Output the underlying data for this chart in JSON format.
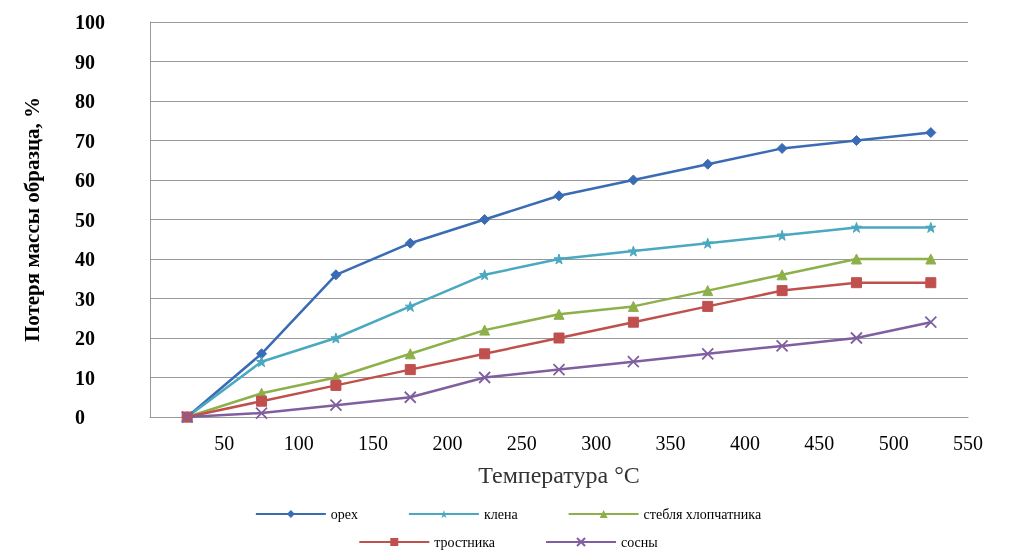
{
  "chart_data": {
    "type": "line",
    "xlabel": "Температура °C",
    "ylabel": "Потеря массы образца, %",
    "x": [
      25,
      75,
      125,
      175,
      225,
      275,
      325,
      375,
      425,
      475,
      525
    ],
    "xlim": [
      0,
      550
    ],
    "xticks": [
      50,
      100,
      150,
      200,
      250,
      300,
      350,
      400,
      450,
      500,
      550
    ],
    "ylim": [
      0,
      100
    ],
    "yticks": [
      0,
      10,
      20,
      30,
      40,
      50,
      60,
      70,
      80,
      90,
      100
    ],
    "grid": "y",
    "legend": "bottom",
    "series": [
      {
        "name": "орех",
        "color": "#3a6bb5",
        "marker": "diamond",
        "values": [
          0,
          16,
          36,
          44,
          50,
          56,
          60,
          64,
          68,
          70,
          72
        ]
      },
      {
        "name": "клена",
        "color": "#4aa8c0",
        "marker": "star",
        "values": [
          0,
          14,
          20,
          28,
          36,
          40,
          42,
          44,
          46,
          48,
          48
        ]
      },
      {
        "name": "стебля хлопчатника",
        "color": "#8db04a",
        "marker": "triangle",
        "values": [
          0,
          6,
          10,
          16,
          22,
          26,
          28,
          32,
          36,
          40,
          40
        ]
      },
      {
        "name": "тростника",
        "color": "#c0504d",
        "marker": "square",
        "values": [
          0,
          4,
          8,
          12,
          16,
          20,
          24,
          28,
          32,
          34,
          34
        ]
      },
      {
        "name": "сосны",
        "color": "#7f5f9f",
        "marker": "cross",
        "values": [
          0,
          1,
          3,
          5,
          10,
          12,
          14,
          16,
          18,
          20,
          24
        ]
      },
      {
        "type": "scatter",
        "color": "#e8883a",
        "marker": "circle",
        "x": [
          25
        ],
        "values": [
          0
        ]
      }
    ]
  }
}
